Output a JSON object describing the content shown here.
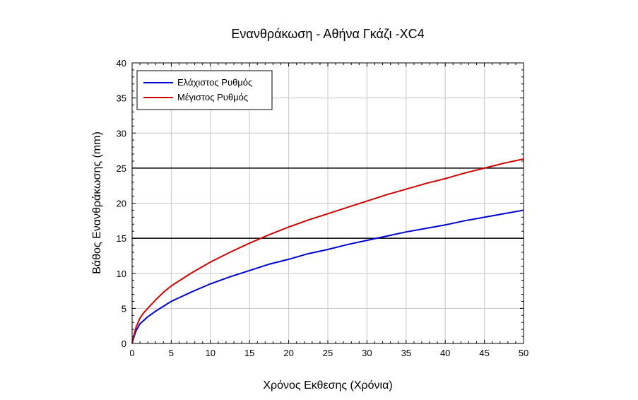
{
  "chart_data": {
    "type": "line",
    "title": "Ενανθράκωση - Αθήνα Γκάζι -XC4",
    "xlabel": "Χρόνος Εκθεσης (Χρόνια)",
    "ylabel": "Βάθος Ενανθράκωσης (mm)",
    "xlim": [
      0,
      50
    ],
    "ylim": [
      0,
      40
    ],
    "xticks": [
      "0",
      "5",
      "10",
      "15",
      "20",
      "25",
      "30",
      "35",
      "40",
      "45",
      "50"
    ],
    "yticks": [
      "0",
      "5",
      "10",
      "15",
      "20",
      "25",
      "30",
      "35",
      "40"
    ],
    "grid": true,
    "legend_position": "top-left",
    "series": [
      {
        "name": "Ελάχιστος Ρυθμός",
        "color": "#0000cc",
        "x": [
          0,
          0.25,
          0.5,
          1,
          1.5,
          2,
          3,
          4,
          5,
          7.5,
          10,
          12.5,
          15,
          17.5,
          20,
          22.5,
          25,
          27.5,
          30,
          32.5,
          35,
          37.5,
          40,
          42.5,
          45,
          47.5,
          50
        ],
        "y": [
          0,
          1.0,
          1.8,
          2.8,
          3.3,
          3.8,
          4.6,
          5.3,
          6.0,
          7.3,
          8.5,
          9.5,
          10.4,
          11.3,
          12.0,
          12.8,
          13.4,
          14.1,
          14.7,
          15.3,
          15.9,
          16.4,
          16.9,
          17.5,
          18.0,
          18.5,
          19.0
        ]
      },
      {
        "name": "Μέγιστος Ρυθμός",
        "color": "#cc0000",
        "x": [
          0,
          0.25,
          0.5,
          1,
          1.5,
          2,
          3,
          4,
          5,
          7.5,
          10,
          12.5,
          15,
          17.5,
          20,
          22.5,
          25,
          27.5,
          30,
          32.5,
          35,
          37.5,
          40,
          42.5,
          45,
          47.5,
          50
        ],
        "y": [
          0,
          1.3,
          2.3,
          3.6,
          4.4,
          5.0,
          6.2,
          7.3,
          8.2,
          10.0,
          11.6,
          13.0,
          14.3,
          15.5,
          16.6,
          17.6,
          18.5,
          19.4,
          20.3,
          21.2,
          22.0,
          22.8,
          23.5,
          24.3,
          25.0,
          25.7,
          26.3
        ]
      },
      {
        "name": "",
        "color": "#000000",
        "x": [
          0,
          50
        ],
        "y": [
          25,
          25
        ]
      },
      {
        "name": "",
        "color": "#000000",
        "x": [
          0,
          50
        ],
        "y": [
          15,
          15
        ]
      }
    ]
  }
}
